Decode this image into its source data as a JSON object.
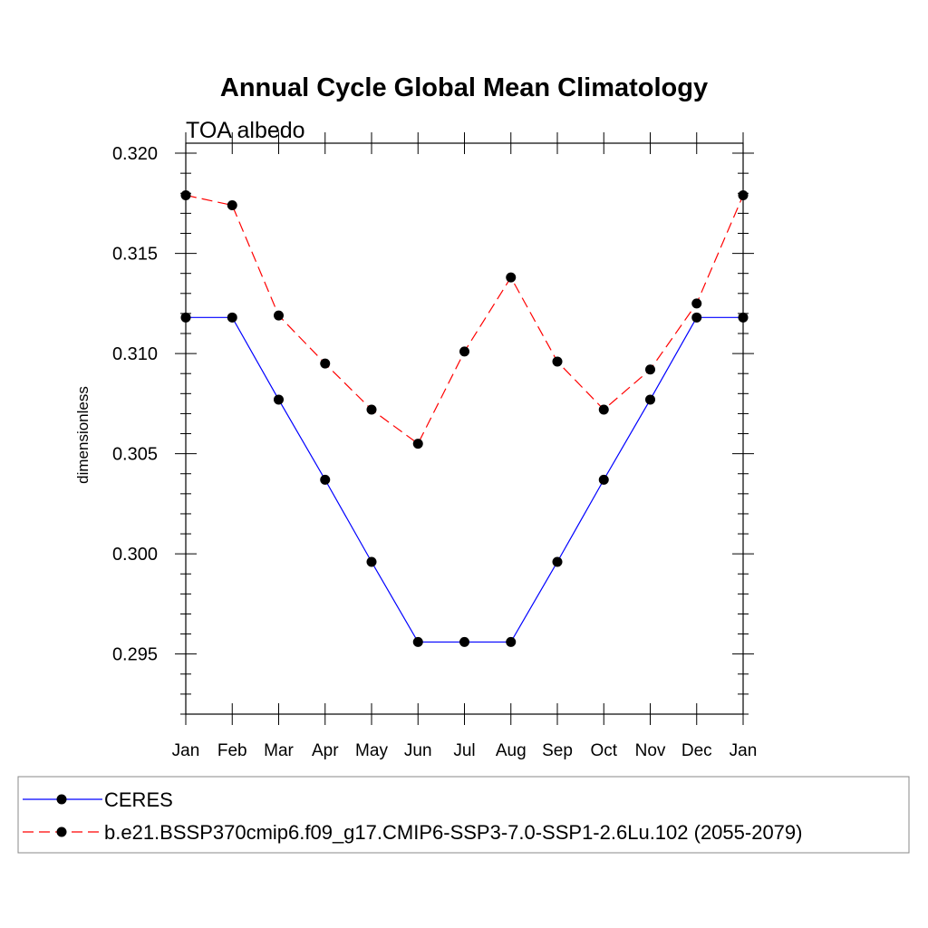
{
  "chart_data": {
    "type": "line",
    "title": "Annual Cycle Global Mean Climatology",
    "subtitle": "TOA albedo",
    "ylabel": "dimensionless",
    "xlabel": "",
    "categories": [
      "Jan",
      "Feb",
      "Mar",
      "Apr",
      "May",
      "Jun",
      "Jul",
      "Aug",
      "Sep",
      "Oct",
      "Nov",
      "Dec",
      "Jan"
    ],
    "ylim": [
      0.292,
      0.3205
    ],
    "yticks": [
      "0.295",
      "0.300",
      "0.305",
      "0.310",
      "0.315",
      "0.320"
    ],
    "grid": false,
    "legend_position": "bottom",
    "series": [
      {
        "name": "CERES",
        "color": "#0000ff",
        "line_style": "solid",
        "marker": "filled-circle",
        "values": [
          0.3118,
          0.3118,
          0.3077,
          0.3037,
          0.2996,
          0.2956,
          0.2956,
          0.2956,
          0.2996,
          0.3037,
          0.3077,
          0.3118,
          0.3118
        ]
      },
      {
        "name": "b.e21.BSSP370cmip6.f09_g17.CMIP6-SSP3-7.0-SSP1-2.6Lu.102 (2055-2079)",
        "color": "#ff0000",
        "line_style": "dashed",
        "marker": "filled-circle",
        "values": [
          0.3179,
          0.3174,
          0.3119,
          0.3095,
          0.3072,
          0.3055,
          0.3101,
          0.3138,
          0.3096,
          0.3072,
          0.3092,
          0.3125,
          0.3179
        ]
      }
    ]
  }
}
